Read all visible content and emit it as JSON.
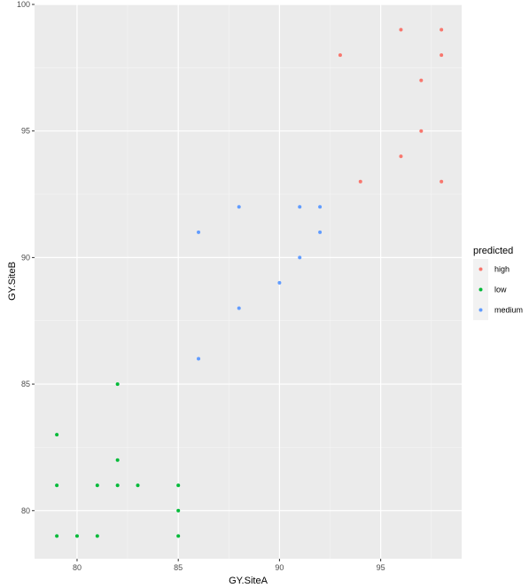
{
  "chart_data": {
    "type": "scatter",
    "xlabel": "GY.SiteA",
    "ylabel": "GY.SiteB",
    "xlim": [
      77.9,
      99.0
    ],
    "ylim": [
      78.1,
      100.0
    ],
    "x_ticks": [
      80,
      85,
      90,
      95
    ],
    "y_ticks": [
      80,
      85,
      90,
      95,
      100
    ],
    "grid": true,
    "legend": {
      "title": "predicted",
      "position": "right",
      "entries": [
        "high",
        "low",
        "medium"
      ]
    },
    "series": [
      {
        "name": "high",
        "color": "#f8766d",
        "points": [
          {
            "x": 93,
            "y": 98
          },
          {
            "x": 96,
            "y": 99
          },
          {
            "x": 98,
            "y": 99
          },
          {
            "x": 98,
            "y": 98
          },
          {
            "x": 97,
            "y": 97
          },
          {
            "x": 97,
            "y": 95
          },
          {
            "x": 96,
            "y": 94
          },
          {
            "x": 94,
            "y": 93
          },
          {
            "x": 98,
            "y": 93
          }
        ]
      },
      {
        "name": "low",
        "color": "#00ba38",
        "points": [
          {
            "x": 82,
            "y": 85
          },
          {
            "x": 79,
            "y": 83
          },
          {
            "x": 82,
            "y": 82
          },
          {
            "x": 79,
            "y": 81
          },
          {
            "x": 81,
            "y": 81
          },
          {
            "x": 82,
            "y": 81
          },
          {
            "x": 83,
            "y": 81
          },
          {
            "x": 85,
            "y": 81
          },
          {
            "x": 85,
            "y": 80
          },
          {
            "x": 79,
            "y": 79
          },
          {
            "x": 80,
            "y": 79
          },
          {
            "x": 81,
            "y": 79
          },
          {
            "x": 85,
            "y": 79
          }
        ]
      },
      {
        "name": "medium",
        "color": "#619cff",
        "points": [
          {
            "x": 88,
            "y": 92
          },
          {
            "x": 91,
            "y": 92
          },
          {
            "x": 92,
            "y": 92
          },
          {
            "x": 86,
            "y": 91
          },
          {
            "x": 92,
            "y": 91
          },
          {
            "x": 91,
            "y": 90
          },
          {
            "x": 90,
            "y": 89
          },
          {
            "x": 88,
            "y": 88
          },
          {
            "x": 86,
            "y": 86
          }
        ]
      }
    ]
  }
}
